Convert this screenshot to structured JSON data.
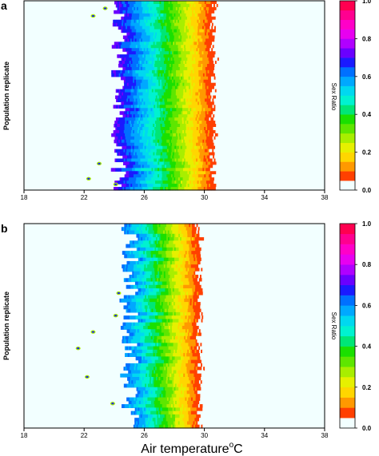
{
  "chart_data": [
    {
      "type": "heatmap",
      "panel_label": "a",
      "ylabel": "Population replicate",
      "x_ticks": [
        "18",
        "22",
        "26",
        "30",
        "34",
        "38"
      ],
      "xlim": [
        18,
        38
      ],
      "colorbar_label": "Sex Ratio",
      "colorbar_ticks": [
        "1.0",
        "0.8",
        "0.6",
        "0.4",
        "0.2",
        "0.0"
      ],
      "colorbar_range": [
        0,
        1
      ],
      "transition_start": 24.3,
      "transition_end": 31.0,
      "value_at_start": 0.72,
      "edge_jitter": 0.55,
      "isolated_spots": [
        [
          22.3,
          0.94
        ],
        [
          23.0,
          0.86
        ],
        [
          24.1,
          0.97
        ],
        [
          22.6,
          0.08
        ],
        [
          23.4,
          0.04
        ]
      ]
    },
    {
      "type": "heatmap",
      "panel_label": "b",
      "ylabel": "Population replicate",
      "x_ticks": [
        "18",
        "22",
        "26",
        "30",
        "34",
        "38"
      ],
      "xlim": [
        18,
        38
      ],
      "colorbar_label": "Sex Ratio",
      "colorbar_ticks": [
        "1.0",
        "0.8",
        "0.6",
        "0.4",
        "0.2",
        "0.0"
      ],
      "colorbar_range": [
        0,
        1
      ],
      "transition_start": 25.0,
      "transition_end": 30.0,
      "value_at_start": 0.62,
      "edge_jitter": 0.65,
      "isolated_spots": [
        [
          22.2,
          0.75
        ],
        [
          21.6,
          0.61
        ],
        [
          22.6,
          0.53
        ],
        [
          24.1,
          0.45
        ],
        [
          24.3,
          0.34
        ],
        [
          23.9,
          0.88
        ]
      ]
    }
  ],
  "xlabel": "Air temperature",
  "xlabel_unit_sup": "o",
  "xlabel_unit": "C",
  "colorbar_colors": [
    "#F2FFFF",
    "#FF4000",
    "#FF9900",
    "#FFD600",
    "#E6F000",
    "#A8EE00",
    "#5EE600",
    "#1AE000",
    "#00E676",
    "#00F2D0",
    "#00D8F0",
    "#00A8FF",
    "#0070FF",
    "#1A1AFF",
    "#6A00FF",
    "#B000FF",
    "#E800F0",
    "#FF00C8",
    "#FF0090",
    "#FF0050"
  ]
}
